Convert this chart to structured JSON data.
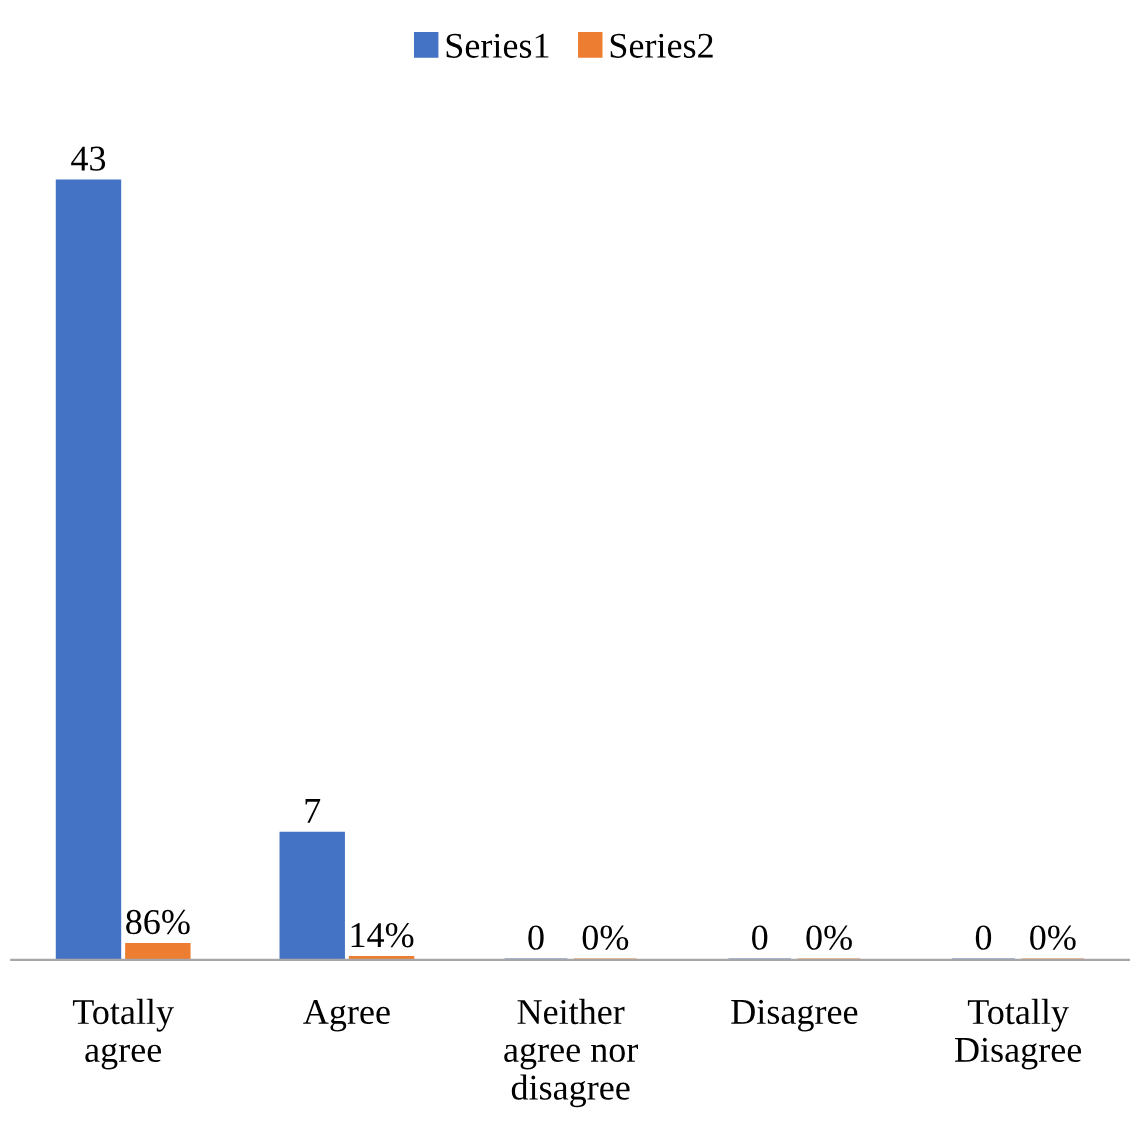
{
  "chart_data": {
    "type": "bar",
    "categories": [
      "Totally agree",
      "Agree",
      "Neither agree nor disagree",
      "Disagree",
      "Totally Disagree"
    ],
    "series": [
      {
        "name": "Series1",
        "color": "#4472c4",
        "values": [
          43,
          7,
          0,
          0,
          0
        ],
        "value_labels": [
          "43",
          "7",
          "0",
          "0",
          "0"
        ]
      },
      {
        "name": "Series2",
        "color": "#ed7d31",
        "values": [
          0.86,
          0.14,
          0,
          0,
          0
        ],
        "value_labels": [
          "86%",
          "14%",
          "0%",
          "0%",
          "0%"
        ]
      }
    ],
    "tick_labels": "x",
    "grid": false,
    "legend": "top"
  }
}
